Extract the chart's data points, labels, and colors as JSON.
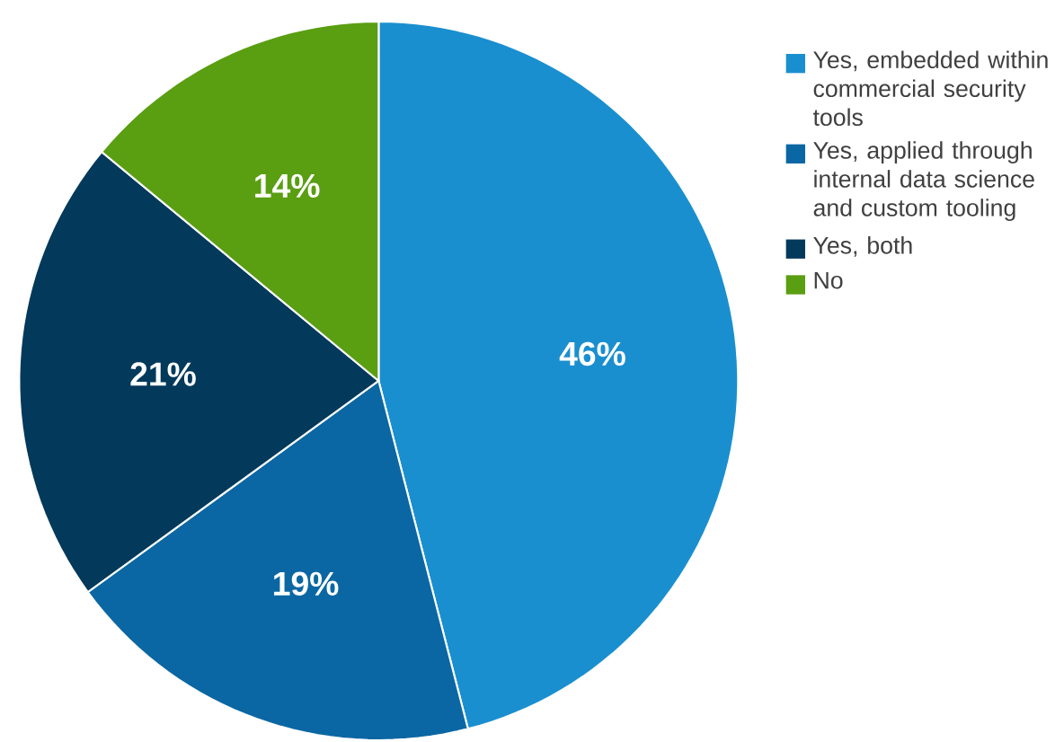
{
  "chart_data": {
    "type": "pie",
    "categories": [
      "Yes, embedded within commercial security tools",
      "Yes, applied through internal data science and custom tooling",
      "Yes, both",
      "No"
    ],
    "values": [
      46,
      19,
      21,
      14
    ],
    "colors": [
      "#1a8fcf",
      "#0b67a3",
      "#03395b",
      "#5a9e12"
    ],
    "value_labels": [
      "46%",
      "19%",
      "21%",
      "14%"
    ],
    "legend": "top right"
  }
}
